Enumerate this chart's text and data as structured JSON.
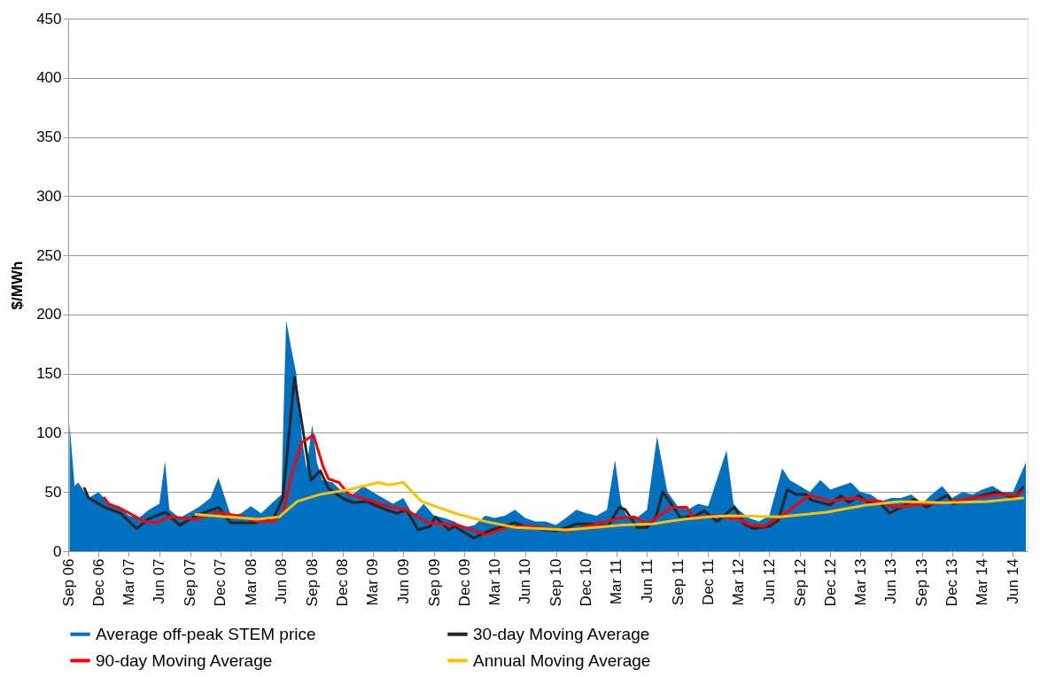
{
  "chart_data": {
    "type": "line",
    "ylabel": "$/MWh",
    "xlim": [
      "2006-09-01",
      "2014-07-15"
    ],
    "ylim": [
      0,
      450
    ],
    "yticks": [
      0,
      50,
      100,
      150,
      200,
      250,
      300,
      350,
      400,
      450
    ],
    "xticks": [
      {
        "value": "2006-09-01",
        "label": "Sep 06"
      },
      {
        "value": "2006-12-01",
        "label": "Dec 06"
      },
      {
        "value": "2007-03-01",
        "label": "Mar 07"
      },
      {
        "value": "2007-06-01",
        "label": "Jun 07"
      },
      {
        "value": "2007-09-01",
        "label": "Sep 07"
      },
      {
        "value": "2007-12-01",
        "label": "Dec 07"
      },
      {
        "value": "2008-03-01",
        "label": "Mar 08"
      },
      {
        "value": "2008-06-01",
        "label": "Jun 08"
      },
      {
        "value": "2008-09-01",
        "label": "Sep 08"
      },
      {
        "value": "2008-12-01",
        "label": "Dec 08"
      },
      {
        "value": "2009-03-01",
        "label": "Mar 09"
      },
      {
        "value": "2009-06-01",
        "label": "Jun 09"
      },
      {
        "value": "2009-09-01",
        "label": "Sep 09"
      },
      {
        "value": "2009-12-01",
        "label": "Dec 09"
      },
      {
        "value": "2010-03-01",
        "label": "Mar 10"
      },
      {
        "value": "2010-06-01",
        "label": "Jun 10"
      },
      {
        "value": "2010-09-01",
        "label": "Sep 10"
      },
      {
        "value": "2010-12-01",
        "label": "Dec 10"
      },
      {
        "value": "2011-03-01",
        "label": "Mar 11"
      },
      {
        "value": "2011-06-01",
        "label": "Jun 11"
      },
      {
        "value": "2011-09-01",
        "label": "Sep 11"
      },
      {
        "value": "2011-12-01",
        "label": "Dec 11"
      },
      {
        "value": "2012-03-01",
        "label": "Mar 12"
      },
      {
        "value": "2012-06-01",
        "label": "Jun 12"
      },
      {
        "value": "2012-09-01",
        "label": "Sep 12"
      },
      {
        "value": "2012-12-01",
        "label": "Dec 12"
      },
      {
        "value": "2013-03-01",
        "label": "Mar 13"
      },
      {
        "value": "2013-06-01",
        "label": "Jun 13"
      },
      {
        "value": "2013-09-01",
        "label": "Sep 13"
      },
      {
        "value": "2013-12-01",
        "label": "Dec 13"
      },
      {
        "value": "2014-03-01",
        "label": "Mar 14"
      },
      {
        "value": "2014-06-01",
        "label": "Jun 14"
      }
    ],
    "grid": "y",
    "legend": "bottom",
    "series": [
      {
        "name": "Average off-peak STEM price",
        "type": "area",
        "color": "#0070c0",
        "x": [
          "2006-09-05",
          "2006-09-20",
          "2006-10-01",
          "2006-11-01",
          "2006-12-01",
          "2007-01-01",
          "2007-02-01",
          "2007-03-01",
          "2007-04-01",
          "2007-05-01",
          "2007-06-01",
          "2007-06-18",
          "2007-07-01",
          "2007-08-01",
          "2007-09-01",
          "2007-10-01",
          "2007-11-01",
          "2007-11-25",
          "2008-01-01",
          "2008-02-01",
          "2008-03-01",
          "2008-04-01",
          "2008-05-01",
          "2008-06-01",
          "2008-06-08",
          "2008-06-15",
          "2008-07-01",
          "2008-07-15",
          "2008-08-01",
          "2008-08-15",
          "2008-09-01",
          "2008-09-15",
          "2008-10-01",
          "2008-11-01",
          "2008-12-01",
          "2009-01-01",
          "2009-02-01",
          "2009-03-01",
          "2009-04-01",
          "2009-05-01",
          "2009-06-01",
          "2009-07-01",
          "2009-08-01",
          "2009-09-01",
          "2009-10-01",
          "2009-11-01",
          "2009-12-01",
          "2010-01-01",
          "2010-02-01",
          "2010-03-01",
          "2010-04-01",
          "2010-05-01",
          "2010-06-01",
          "2010-07-01",
          "2010-08-01",
          "2010-09-01",
          "2010-10-01",
          "2010-11-01",
          "2010-12-01",
          "2011-01-01",
          "2011-02-01",
          "2011-02-25",
          "2011-03-15",
          "2011-04-01",
          "2011-05-01",
          "2011-06-01",
          "2011-07-01",
          "2011-08-01",
          "2011-09-01",
          "2011-10-01",
          "2011-11-01",
          "2011-12-01",
          "2012-01-25",
          "2012-02-15",
          "2012-03-01",
          "2012-04-01",
          "2012-05-01",
          "2012-06-01",
          "2012-07-10",
          "2012-08-01",
          "2012-09-01",
          "2012-10-01",
          "2012-11-01",
          "2012-12-01",
          "2013-01-01",
          "2013-02-01",
          "2013-03-01",
          "2013-04-01",
          "2013-05-01",
          "2013-06-01",
          "2013-07-01",
          "2013-08-01",
          "2013-09-01",
          "2013-10-01",
          "2013-11-01",
          "2013-12-01",
          "2014-01-01",
          "2014-02-01",
          "2014-03-01",
          "2014-04-01",
          "2014-05-01",
          "2014-06-01",
          "2014-07-10"
        ],
        "values": [
          108,
          55,
          58,
          45,
          50,
          40,
          38,
          30,
          28,
          35,
          40,
          76,
          35,
          28,
          33,
          38,
          45,
          62,
          30,
          32,
          38,
          32,
          40,
          48,
          125,
          195,
          170,
          150,
          95,
          70,
          107,
          75,
          60,
          58,
          50,
          48,
          55,
          50,
          45,
          40,
          45,
          30,
          40,
          30,
          28,
          25,
          20,
          22,
          30,
          28,
          30,
          35,
          28,
          25,
          25,
          22,
          28,
          35,
          32,
          30,
          35,
          77,
          40,
          30,
          28,
          35,
          97,
          50,
          38,
          35,
          40,
          38,
          85,
          40,
          35,
          28,
          25,
          30,
          70,
          60,
          55,
          50,
          60,
          52,
          55,
          58,
          50,
          48,
          42,
          45,
          45,
          48,
          40,
          48,
          55,
          45,
          50,
          48,
          52,
          55,
          50,
          50,
          75
        ]
      },
      {
        "name": "30-day Moving Average",
        "color": "#262626",
        "x": [
          "2006-10-20",
          "2006-11-01",
          "2006-12-20",
          "2007-02-05",
          "2007-03-25",
          "2007-04-28",
          "2007-06-20",
          "2007-08-01",
          "2007-09-20",
          "2007-11-25",
          "2008-01-01",
          "2008-03-15",
          "2008-05-10",
          "2008-06-05",
          "2008-07-10",
          "2008-08-10",
          "2008-08-28",
          "2008-09-25",
          "2008-10-20",
          "2008-12-05",
          "2009-01-03",
          "2009-02-10",
          "2009-04-01",
          "2009-05-12",
          "2009-06-10",
          "2009-07-15",
          "2009-08-20",
          "2009-09-05",
          "2009-10-15",
          "2009-11-01",
          "2009-12-28",
          "2010-02-20",
          "2010-03-18",
          "2010-05-01",
          "2010-06-10",
          "2010-09-01",
          "2010-11-03",
          "2010-12-18",
          "2011-02-03",
          "2011-03-10",
          "2011-03-28",
          "2011-05-03",
          "2011-06-01",
          "2011-06-28",
          "2011-07-18",
          "2011-08-12",
          "2011-09-10",
          "2011-10-25",
          "2011-11-20",
          "2011-12-28",
          "2012-02-03",
          "2012-02-18",
          "2012-03-18",
          "2012-04-15",
          "2012-06-01",
          "2012-06-28",
          "2012-07-25",
          "2012-08-20",
          "2012-09-18",
          "2012-10-05",
          "2012-12-01",
          "2013-01-01",
          "2013-01-25",
          "2013-02-25",
          "2013-03-25",
          "2013-05-01",
          "2013-05-28",
          "2013-07-12",
          "2013-08-10",
          "2013-09-15",
          "2013-11-01",
          "2013-11-18",
          "2013-12-05",
          "2014-02-01",
          "2014-04-12",
          "2014-06-05",
          "2014-07-01"
        ],
        "values": [
          53,
          45,
          37,
          32,
          19,
          27,
          33,
          22,
          30,
          37,
          24,
          24,
          29,
          45,
          147,
          92,
          60,
          68,
          53,
          44,
          41,
          42,
          36,
          32,
          35,
          18,
          21,
          29,
          18,
          21,
          11,
          18,
          20,
          24,
          20,
          17,
          23,
          23,
          21,
          37,
          35,
          20,
          20,
          29,
          50,
          40,
          28,
          30,
          34,
          25,
          34,
          37,
          23,
          19,
          21,
          26,
          52,
          48,
          48,
          43,
          39,
          47,
          41,
          47,
          41,
          40,
          32,
          39,
          44,
          37,
          45,
          47,
          40,
          45,
          50,
          45,
          54
        ]
      },
      {
        "name": "90-day Moving Average",
        "color": "#ff0000",
        "x": [
          "2006-12-18",
          "2007-01-01",
          "2007-02-05",
          "2007-04-18",
          "2007-05-25",
          "2007-07-01",
          "2007-09-20",
          "2007-11-25",
          "2008-02-05",
          "2008-03-20",
          "2008-05-10",
          "2008-06-05",
          "2008-07-03",
          "2008-08-01",
          "2008-09-05",
          "2008-10-03",
          "2008-10-20",
          "2008-11-20",
          "2008-12-20",
          "2009-01-28",
          "2009-03-12",
          "2009-04-25",
          "2009-06-10",
          "2009-08-12",
          "2009-11-12",
          "2010-02-03",
          "2010-04-15",
          "2010-06-18",
          "2010-10-05",
          "2011-01-05",
          "2011-03-10",
          "2011-04-25",
          "2011-06-01",
          "2011-08-12",
          "2011-09-28",
          "2011-10-15",
          "2011-11-03",
          "2011-12-25",
          "2012-03-05",
          "2012-04-03",
          "2012-05-18",
          "2012-08-03",
          "2012-09-28",
          "2012-11-03",
          "2012-12-01",
          "2013-01-05",
          "2013-02-20",
          "2013-03-15",
          "2013-05-03",
          "2013-06-10",
          "2013-08-03",
          "2013-11-03",
          "2014-02-03",
          "2014-04-15",
          "2014-06-10",
          "2014-07-01"
        ],
        "values": [
          45,
          40,
          36,
          25,
          24,
          29,
          27,
          33,
          29,
          25,
          25,
          32,
          66,
          92,
          98,
          72,
          61,
          58,
          48,
          45,
          41,
          37,
          35,
          24,
          22,
          14,
          21,
          21,
          17,
          23,
          28,
          29,
          23,
          37,
          37,
          29,
          29,
          30,
          27,
          22,
          21,
          35,
          47,
          45,
          42,
          44,
          45,
          43,
          42,
          37,
          39,
          41,
          45,
          48,
          47,
          51
        ]
      },
      {
        "name": "Annual Moving Average",
        "color": "#ffc000",
        "x": [
          "2007-09-18",
          "2007-12-25",
          "2008-03-20",
          "2008-05-25",
          "2008-07-18",
          "2008-09-25",
          "2008-12-20",
          "2009-03-18",
          "2009-04-18",
          "2009-06-01",
          "2009-07-25",
          "2009-11-03",
          "2010-02-03",
          "2010-05-03",
          "2010-10-05",
          "2011-03-18",
          "2011-06-18",
          "2011-09-18",
          "2011-12-01",
          "2012-02-03",
          "2012-07-05",
          "2012-11-20",
          "2013-03-18",
          "2013-06-28",
          "2013-11-03",
          "2014-03-18",
          "2014-07-01"
        ],
        "values": [
          31,
          29,
          27,
          29,
          42,
          48,
          52,
          58,
          56,
          58,
          42,
          32,
          25,
          20,
          18,
          22,
          23,
          27,
          29,
          30,
          29,
          33,
          39,
          42,
          41,
          42,
          45
        ]
      }
    ]
  }
}
